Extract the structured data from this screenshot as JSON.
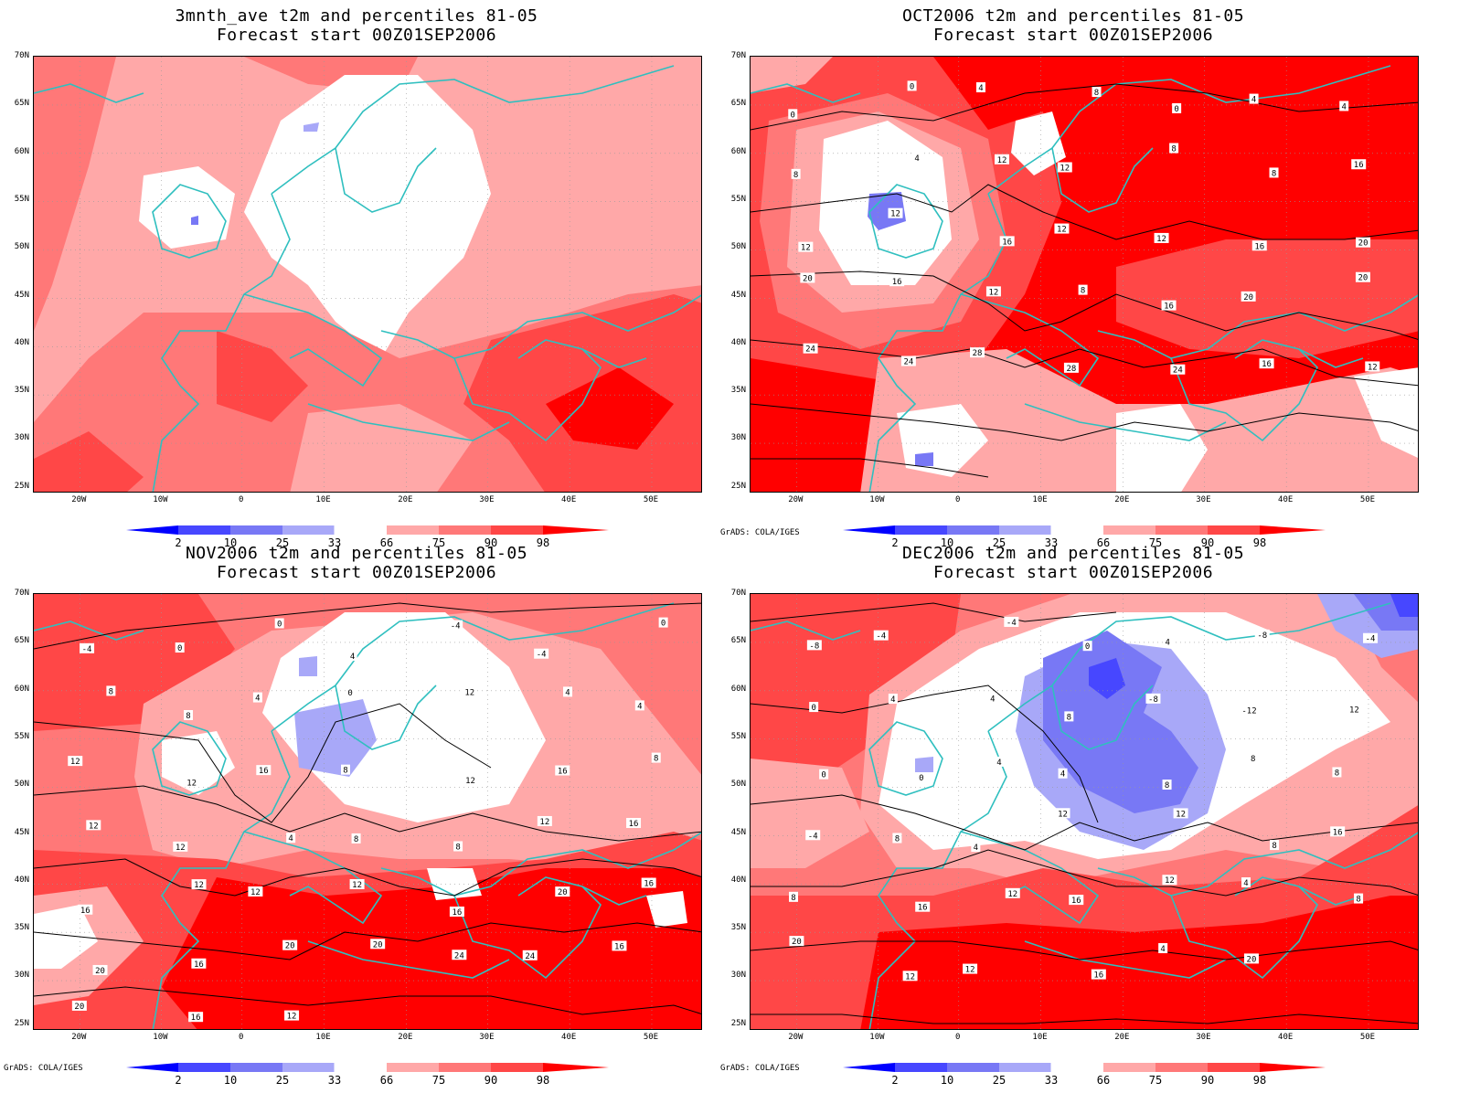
{
  "panels": [
    {
      "title_line1": "3mnth_ave t2m and percentiles 81-05",
      "title_line2": "Forecast start 00Z01SEP2006",
      "credit": "",
      "contour_labels": []
    },
    {
      "title_line1": "OCT2006 t2m and percentiles 81-05",
      "title_line2": "Forecast start 00Z01SEP2006",
      "credit": "GrADS: COLA/IGES",
      "contour_labels": [
        "0",
        "0",
        "4",
        "8",
        "0",
        "4",
        "4",
        "8",
        "4",
        "12",
        "12",
        "8",
        "8",
        "16",
        "12",
        "12",
        "16",
        "12",
        "12",
        "16",
        "20",
        "20",
        "16",
        "12",
        "8",
        "16",
        "20",
        "20",
        "24",
        "24",
        "28",
        "28",
        "24",
        "16",
        "12"
      ]
    },
    {
      "title_line1": "NOV2006 t2m and percentiles 81-05",
      "title_line2": "Forecast start 00Z01SEP2006",
      "credit": "GrADS: COLA/IGES",
      "contour_labels": [
        "-4",
        "0",
        "0",
        "4",
        "-4",
        "-4",
        "0",
        "8",
        "8",
        "4",
        "0",
        "12",
        "4",
        "4",
        "12",
        "12",
        "16",
        "8",
        "12",
        "16",
        "8",
        "12",
        "12",
        "4",
        "8",
        "8",
        "12",
        "16",
        "16",
        "12",
        "12",
        "12",
        "16",
        "20",
        "16",
        "20",
        "16",
        "20",
        "20",
        "24",
        "24",
        "16",
        "20",
        "16",
        "12"
      ]
    },
    {
      "title_line1": "DEC2006 t2m and percentiles 81-05",
      "title_line2": "Forecast start 00Z01SEP2006",
      "credit": "GrADS: COLA/IGES",
      "contour_labels": [
        "-8",
        "-4",
        "-4",
        "0",
        "4",
        "-8",
        "-4",
        "0",
        "4",
        "4",
        "8",
        "-8",
        "-12",
        "12",
        "0",
        "0",
        "4",
        "4",
        "8",
        "8",
        "8",
        "-4",
        "8",
        "4",
        "12",
        "12",
        "8",
        "16",
        "8",
        "16",
        "12",
        "16",
        "12",
        "4",
        "8",
        "20",
        "12",
        "12",
        "16",
        "4",
        "20"
      ]
    }
  ],
  "axes": {
    "y_ticks": [
      "70N",
      "65N",
      "60N",
      "55N",
      "50N",
      "45N",
      "40N",
      "35N",
      "30N",
      "25N"
    ],
    "x_ticks": [
      "20W",
      "10W",
      "0",
      "10E",
      "20E",
      "30E",
      "40E",
      "50E"
    ],
    "lat_range": [
      25,
      70
    ],
    "lon_range": [
      -27,
      55
    ]
  },
  "colorbar": {
    "labels": [
      "2",
      "10",
      "25",
      "33",
      "66",
      "75",
      "90",
      "98"
    ],
    "colors": [
      "#0000ff",
      "#4747ff",
      "#7878f5",
      "#a8a8f8",
      "#ffffff",
      "#ffa8a8",
      "#ff7878",
      "#ff4747",
      "#ff0000"
    ]
  },
  "map_colors": {
    "coast": "#2fbfbf",
    "contour": "#000000"
  },
  "chart_data": {
    "type": "heatmap",
    "title": "",
    "variable": "t2m percentile class",
    "categories_percentile_bounds": [
      "<2",
      "2-10",
      "10-25",
      "25-33",
      "33-66",
      "66-75",
      "75-90",
      "90-98",
      ">98"
    ],
    "panels": [
      "3mnth_ave",
      "OCT2006",
      "NOV2006",
      "DEC2006"
    ]
  }
}
